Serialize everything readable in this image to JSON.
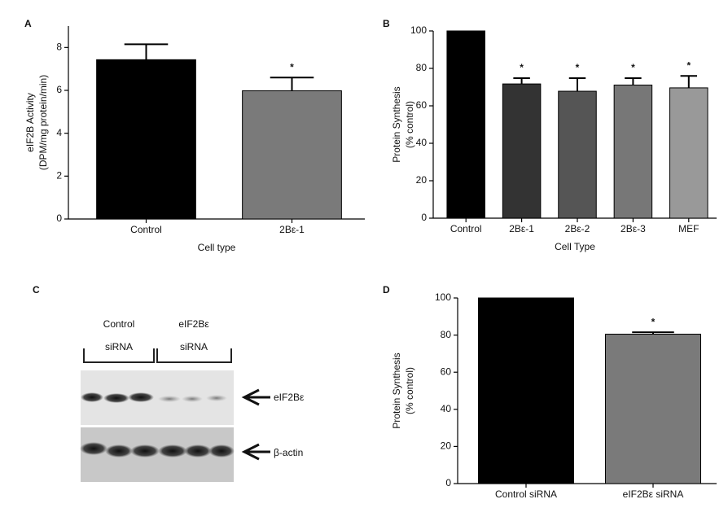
{
  "chart_data": [
    {
      "type": "bar",
      "panel_label": "A",
      "y_label": [
        "eIF2B Activity",
        "(DPM/mg protein/min)"
      ],
      "x_label": "Cell type",
      "categories": [
        "Control",
        "2Bε-1"
      ],
      "values": [
        7.43,
        5.98
      ],
      "errors": [
        0.72,
        0.62
      ],
      "markers": [
        null,
        "*"
      ],
      "colors": [
        "#000000",
        "#7a7a7a"
      ],
      "ylim": [
        0,
        9
      ],
      "yticks": [
        0,
        2,
        4,
        6,
        8
      ]
    },
    {
      "type": "bar",
      "panel_label": "B",
      "y_label": [
        "Protein Synthesis",
        "(% control)"
      ],
      "x_label": "Cell Type",
      "categories": [
        "Control",
        "2Bε-1",
        "2Bε-2",
        "2Bε-3",
        "MEF"
      ],
      "values": [
        100,
        71.7,
        67.8,
        71.1,
        69.6
      ],
      "errors": [
        null,
        3.1,
        7.0,
        3.7,
        6.4
      ],
      "markers": [
        null,
        "*",
        "*",
        "*",
        "*"
      ],
      "colors": [
        "#000000",
        "#333333",
        "#555555",
        "#777777",
        "#999999"
      ],
      "ylim": [
        0,
        100
      ],
      "yticks": [
        0,
        20,
        40,
        60,
        80,
        100
      ]
    },
    {
      "type": "bar",
      "panel_label": "D",
      "y_label": [
        "Protein Synthesis",
        "(% control)"
      ],
      "categories": [
        "Control siRNA",
        "eIF2Bε siRNA"
      ],
      "values": [
        100,
        80.5
      ],
      "errors": [
        null,
        1.0
      ],
      "markers": [
        null,
        "*"
      ],
      "colors": [
        "#000000",
        "#7a7a7a"
      ],
      "ylim": [
        0,
        100
      ],
      "yticks": [
        0,
        20,
        40,
        60,
        80,
        100
      ]
    }
  ],
  "blot": {
    "panel_label": "C",
    "groups": [
      [
        "Control",
        "siRNA"
      ],
      [
        "eIF2Bε",
        "siRNA"
      ]
    ],
    "bands": [
      "eIF2Bε",
      "β-actin"
    ]
  }
}
